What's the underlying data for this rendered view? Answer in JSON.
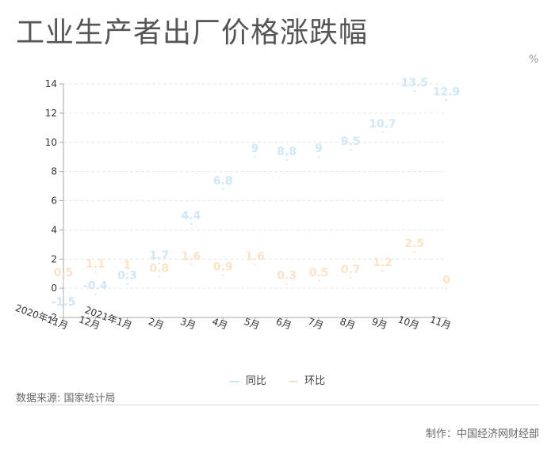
{
  "header": {
    "title": "工业生产者出厂价格涨跌幅",
    "unit": "%"
  },
  "legend": {
    "series_1": "同比",
    "series_2": "环比"
  },
  "footer": {
    "source": "数据来源: 国家统计局",
    "credit": "制作：中国经济网财经部"
  },
  "colors": {
    "series_1": "#cfe8f7",
    "series_2": "#fde3c6",
    "grid": "#e6e6e6",
    "axis": "#aaaaaa"
  },
  "chart_data": {
    "type": "line",
    "title": "工业生产者出厂价格涨跌幅",
    "ylabel": "%",
    "ylim": [
      -2,
      14
    ],
    "yticks": [
      -2,
      0,
      2,
      4,
      6,
      8,
      10,
      12,
      14
    ],
    "grid": true,
    "legend_position": "bottom",
    "categories": [
      "2020年11月",
      "12月",
      "2021年1月",
      "2月",
      "3月",
      "4月",
      "5月",
      "6月",
      "7月",
      "8月",
      "9月",
      "10月",
      "11月"
    ],
    "series": [
      {
        "name": "同比",
        "values": [
          -1.5,
          -0.4,
          0.3,
          1.7,
          4.4,
          6.8,
          9,
          8.8,
          9,
          9.5,
          10.7,
          13.5,
          12.9
        ]
      },
      {
        "name": "环比",
        "values": [
          0.5,
          1.1,
          1,
          0.8,
          1.6,
          0.9,
          1.6,
          0.3,
          0.5,
          0.7,
          1.2,
          2.5,
          0
        ]
      }
    ]
  }
}
